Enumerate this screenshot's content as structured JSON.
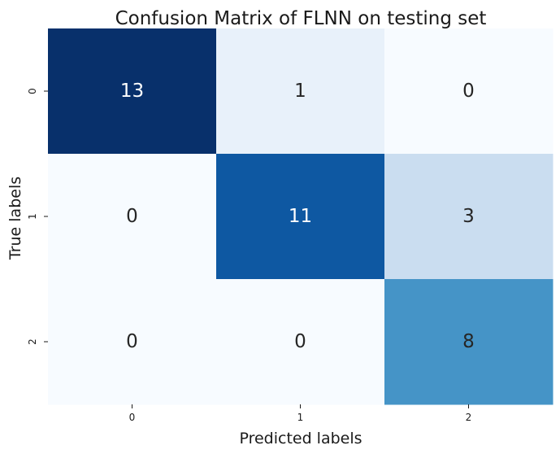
{
  "chart_data": {
    "type": "heatmap",
    "title": "Confusion Matrix of FLNN on testing set",
    "xlabel": "Predicted labels",
    "ylabel": "True labels",
    "x_categories": [
      "0",
      "1",
      "2"
    ],
    "y_categories": [
      "0",
      "1",
      "2"
    ],
    "values": [
      [
        13,
        1,
        0
      ],
      [
        0,
        11,
        3
      ],
      [
        0,
        0,
        8
      ]
    ],
    "colormap": "Blues",
    "value_range": [
      0,
      13
    ],
    "colorbar": false,
    "annotations": true,
    "grid": false
  }
}
